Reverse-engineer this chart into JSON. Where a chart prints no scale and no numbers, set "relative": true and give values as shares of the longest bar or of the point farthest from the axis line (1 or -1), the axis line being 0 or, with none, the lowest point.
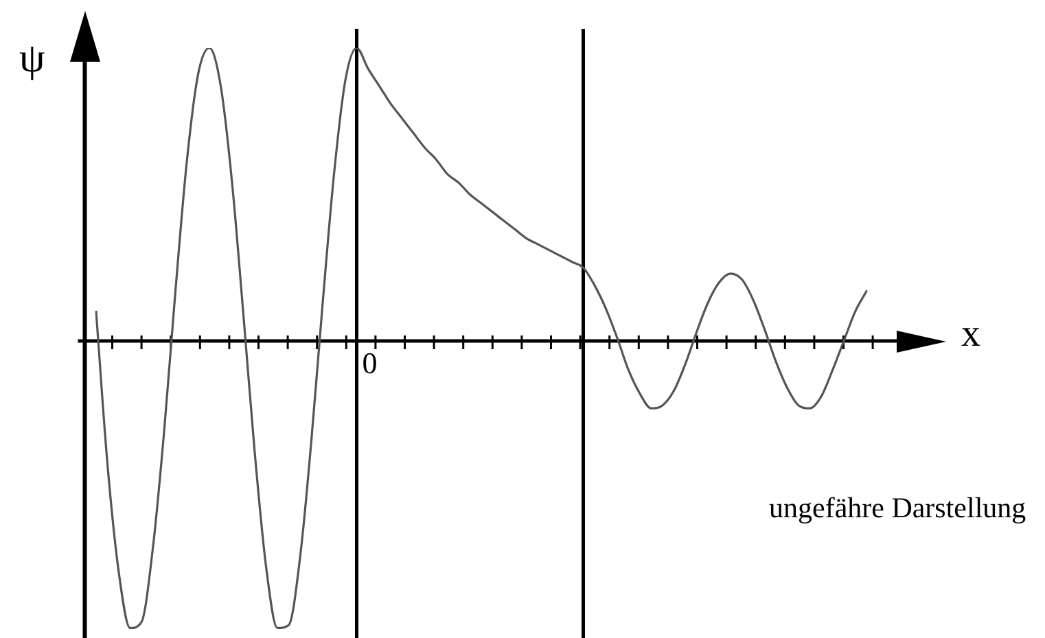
{
  "chart_data": {
    "type": "line",
    "relative": true,
    "xlabel": "x",
    "ylabel": "ψ",
    "annotations": [
      "0",
      "ungefähre Darstellung"
    ],
    "categories": [
      null,
      null,
      null,
      null,
      null,
      null,
      null,
      null,
      null,
      null,
      null,
      null,
      null,
      null,
      null,
      null,
      null,
      null,
      null,
      null,
      null,
      null,
      null,
      null,
      null,
      null,
      null,
      null,
      null,
      null,
      null,
      null,
      null,
      null,
      null,
      null,
      null,
      null,
      null,
      null,
      null,
      null,
      null,
      null,
      null,
      null,
      null,
      null,
      null,
      null,
      null,
      null,
      null,
      null,
      null,
      null,
      null,
      null,
      null,
      null,
      null,
      null,
      null,
      null,
      null,
      null,
      null,
      null,
      null
    ],
    "marker": "none",
    "line_style": "solid",
    "legend": false,
    "series": [
      {
        "color": "#555555",
        "values": [
          0.1,
          -0.42,
          -0.79,
          -0.98,
          -0.96,
          -0.71,
          -0.31,
          0.17,
          0.61,
          0.91,
          1,
          0.87,
          0.54,
          0.09,
          -0.38,
          -0.77,
          -0.98,
          -0.97,
          -0.74,
          -0.34,
          0.13,
          0.57,
          0.89,
          1,
          0.93,
          0.87,
          0.81,
          0.76,
          0.71,
          0.66,
          0.62,
          0.57,
          0.54,
          0.5,
          0.47,
          0.44,
          0.41,
          0.38,
          0.35,
          0.33,
          0.31,
          0.29,
          0.27,
          0.25,
          0.19,
          0.11,
          0.01,
          -0.1,
          -0.18,
          -0.23,
          -0.22,
          -0.17,
          -0.08,
          0.03,
          0.13,
          0.2,
          0.23,
          0.21,
          0.14,
          0.04,
          -0.07,
          -0.16,
          -0.22,
          -0.23,
          -0.19,
          -0.1,
          0,
          0.1,
          0.17
        ]
      }
    ]
  }
}
